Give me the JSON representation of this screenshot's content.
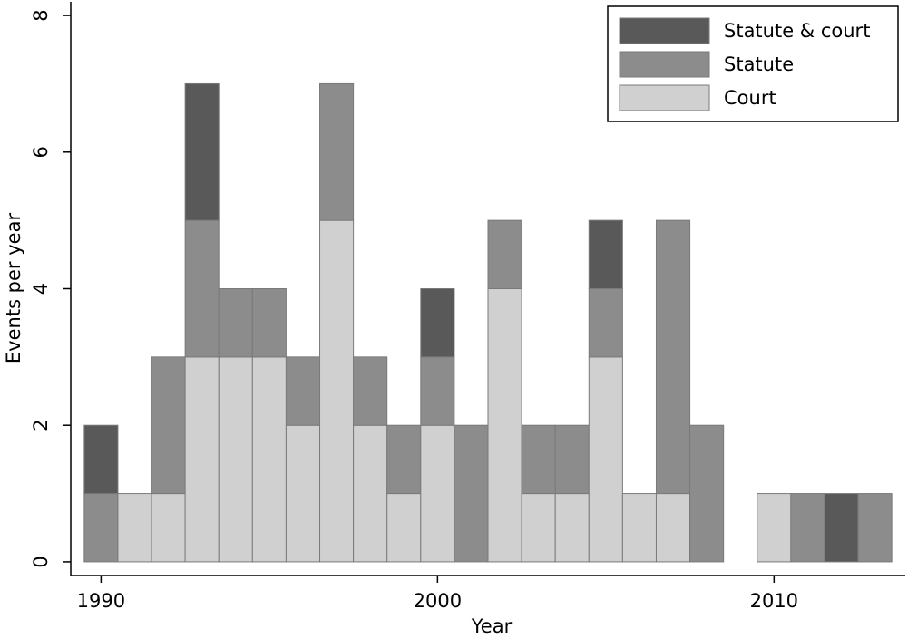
{
  "chart_data": {
    "type": "stacked-bar",
    "x_label": "Year",
    "y_label": "Events per year",
    "x": [
      1990,
      1991,
      1992,
      1993,
      1994,
      1995,
      1996,
      1997,
      1998,
      1999,
      2000,
      2001,
      2002,
      2003,
      2004,
      2005,
      2006,
      2007,
      2008,
      2009,
      2010,
      2011,
      2012,
      2013
    ],
    "series": [
      {
        "name": "Statute & court",
        "color": "#595959",
        "values": [
          1,
          0,
          0,
          2,
          0,
          0,
          0,
          0,
          0,
          0,
          1,
          0,
          0,
          0,
          0,
          1,
          0,
          0,
          0,
          0,
          0,
          0,
          1,
          0
        ]
      },
      {
        "name": "Statute",
        "color": "#8c8c8c",
        "values": [
          1,
          0,
          2,
          2,
          1,
          1,
          1,
          2,
          1,
          1,
          1,
          2,
          1,
          1,
          1,
          1,
          0,
          4,
          2,
          0,
          0,
          1,
          0,
          1
        ]
      },
      {
        "name": "Court",
        "color": "#d0d0d0",
        "values": [
          0,
          1,
          1,
          3,
          3,
          3,
          2,
          5,
          2,
          1,
          2,
          0,
          4,
          1,
          1,
          3,
          1,
          1,
          0,
          0,
          1,
          0,
          0,
          0
        ]
      }
    ],
    "xlim": [
      1989.1,
      2013.9
    ],
    "xticks": [
      1990,
      2000,
      2010
    ],
    "ylim": [
      -0.2,
      8.2
    ],
    "yticks": [
      0,
      2,
      4,
      6,
      8
    ],
    "legend": "top-right"
  }
}
